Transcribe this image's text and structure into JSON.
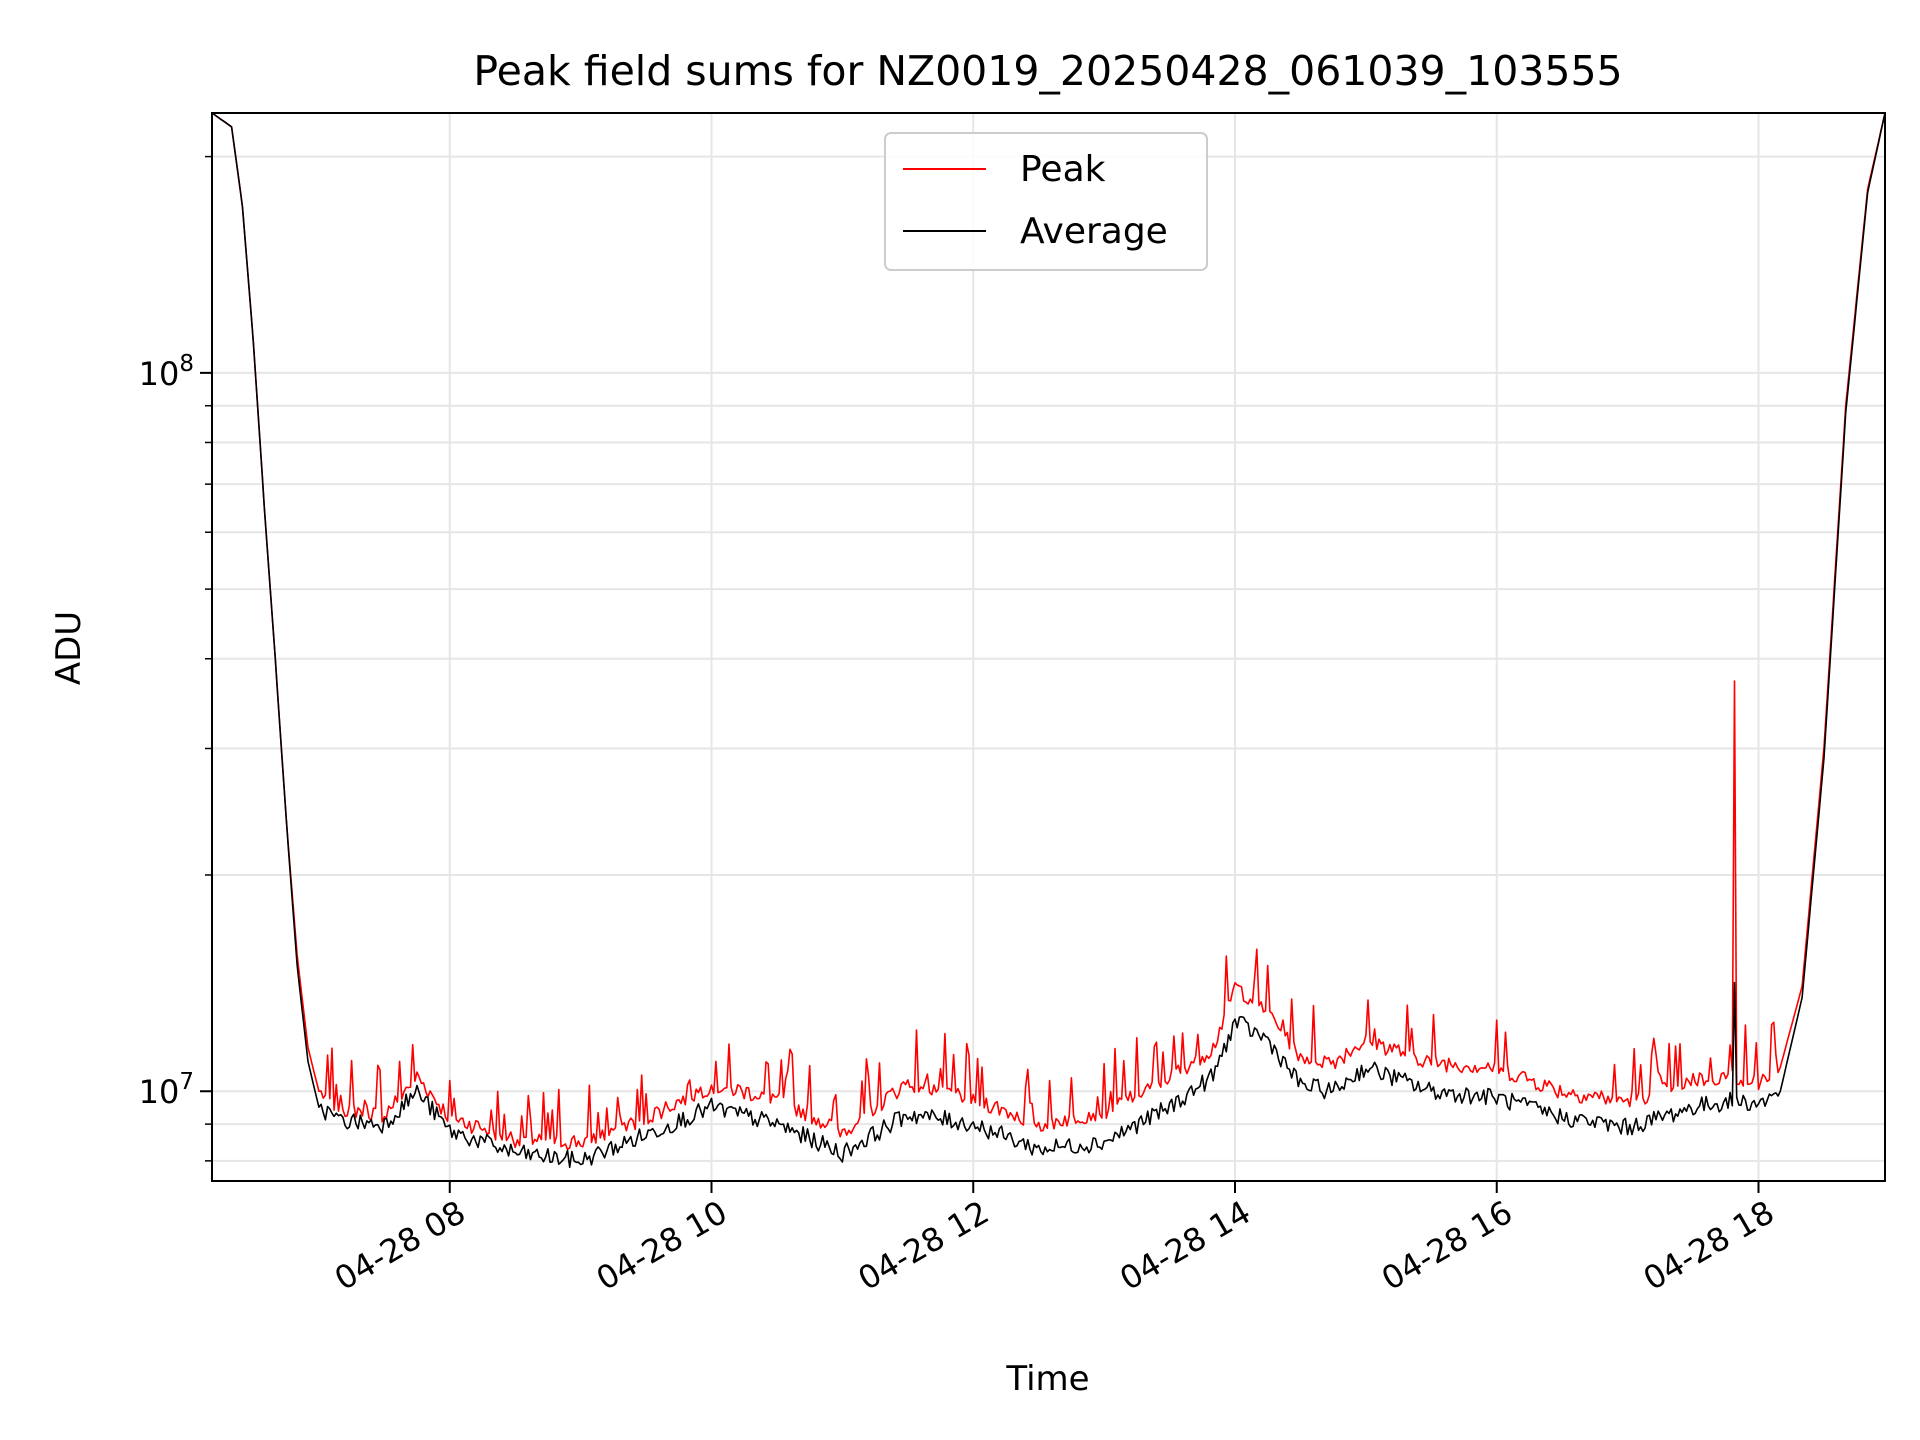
{
  "chart_data": {
    "type": "line",
    "title": "Peak field sums for NZ0019_20250428_061039_103555",
    "xlabel": "Time",
    "ylabel": "ADU",
    "y_scale": "log",
    "ylim": [
      7500000,
      230000000
    ],
    "xlim": [
      "2025-04-28 06:11",
      "2025-04-28 18:58"
    ],
    "x_tick_labels": [
      "04-28 08",
      "04-28 10",
      "04-28 12",
      "04-28 14",
      "04-28 16",
      "04-28 18"
    ],
    "y_tick_labels": [
      {
        "value": 10000000,
        "base": "10",
        "exp": "7"
      },
      {
        "value": 100000000,
        "base": "10",
        "exp": "8"
      }
    ],
    "grid": true,
    "legend_position": "top-center",
    "series": [
      {
        "name": "Peak",
        "color": "#ff0000",
        "x": [
          "2025-04-28 06:11",
          "2025-04-28 06:20",
          "2025-04-28 06:25",
          "2025-04-28 06:30",
          "2025-04-28 06:35",
          "2025-04-28 06:40",
          "2025-04-28 06:45",
          "2025-04-28 06:50",
          "2025-04-28 06:55",
          "2025-04-28 07:00",
          "2025-04-28 07:10",
          "2025-04-28 07:30",
          "2025-04-28 07:45",
          "2025-04-28 08:00",
          "2025-04-28 08:30",
          "2025-04-28 09:00",
          "2025-04-28 09:30",
          "2025-04-28 10:00",
          "2025-04-28 10:30",
          "2025-04-28 11:00",
          "2025-04-28 11:30",
          "2025-04-28 12:00",
          "2025-04-28 12:30",
          "2025-04-28 13:00",
          "2025-04-28 13:30",
          "2025-04-28 13:50",
          "2025-04-28 14:00",
          "2025-04-28 14:15",
          "2025-04-28 14:30",
          "2025-04-28 14:45",
          "2025-04-28 15:00",
          "2025-04-28 15:30",
          "2025-04-28 16:00",
          "2025-04-28 16:30",
          "2025-04-28 17:00",
          "2025-04-28 17:30",
          "2025-04-28 17:48",
          "2025-04-28 17:49",
          "2025-04-28 17:50",
          "2025-04-28 18:00",
          "2025-04-28 18:10",
          "2025-04-28 18:20",
          "2025-04-28 18:30",
          "2025-04-28 18:40",
          "2025-04-28 18:50",
          "2025-04-28 18:58"
        ],
        "values": [
          230000000,
          220000000,
          170000000,
          110000000,
          65000000,
          40000000,
          24000000,
          15500000,
          11500000,
          10000000,
          9500000,
          9300000,
          10500000,
          9200000,
          8600000,
          8500000,
          9200000,
          10200000,
          9800000,
          8800000,
          10300000,
          9800000,
          9000000,
          9400000,
          10500000,
          11500000,
          14000000,
          13000000,
          11200000,
          11000000,
          11800000,
          11000000,
          10800000,
          10000000,
          9700000,
          10400000,
          10500000,
          38000000,
          10500000,
          10300000,
          10800000,
          14000000,
          30000000,
          90000000,
          180000000,
          230000000
        ]
      },
      {
        "name": "Average",
        "color": "#000000",
        "x": [
          "2025-04-28 06:11",
          "2025-04-28 06:20",
          "2025-04-28 06:25",
          "2025-04-28 06:30",
          "2025-04-28 06:35",
          "2025-04-28 06:40",
          "2025-04-28 06:45",
          "2025-04-28 06:50",
          "2025-04-28 06:55",
          "2025-04-28 07:00",
          "2025-04-28 07:10",
          "2025-04-28 07:30",
          "2025-04-28 07:45",
          "2025-04-28 08:00",
          "2025-04-28 08:30",
          "2025-04-28 09:00",
          "2025-04-28 09:30",
          "2025-04-28 10:00",
          "2025-04-28 10:30",
          "2025-04-28 11:00",
          "2025-04-28 11:30",
          "2025-04-28 12:00",
          "2025-04-28 12:30",
          "2025-04-28 13:00",
          "2025-04-28 13:30",
          "2025-04-28 13:50",
          "2025-04-28 14:00",
          "2025-04-28 14:15",
          "2025-04-28 14:30",
          "2025-04-28 14:45",
          "2025-04-28 15:00",
          "2025-04-28 15:30",
          "2025-04-28 16:00",
          "2025-04-28 16:30",
          "2025-04-28 17:00",
          "2025-04-28 17:30",
          "2025-04-28 17:48",
          "2025-04-28 17:49",
          "2025-04-28 17:50",
          "2025-04-28 18:00",
          "2025-04-28 18:10",
          "2025-04-28 18:20",
          "2025-04-28 18:30",
          "2025-04-28 18:40",
          "2025-04-28 18:50",
          "2025-04-28 18:58"
        ],
        "values": [
          230000000,
          220000000,
          170000000,
          110000000,
          65000000,
          40000000,
          24000000,
          15000000,
          11000000,
          9500000,
          9100000,
          9000000,
          10000000,
          8800000,
          8200000,
          8000000,
          8700000,
          9500000,
          9000000,
          8200000,
          9300000,
          9000000,
          8300000,
          8500000,
          9500000,
          10500000,
          12500000,
          11800000,
          10200000,
          10000000,
          10800000,
          10000000,
          9800000,
          9200000,
          8900000,
          9500000,
          9700000,
          14000000,
          9700000,
          9600000,
          10000000,
          13500000,
          29000000,
          88000000,
          178000000,
          230000000
        ]
      }
    ]
  }
}
